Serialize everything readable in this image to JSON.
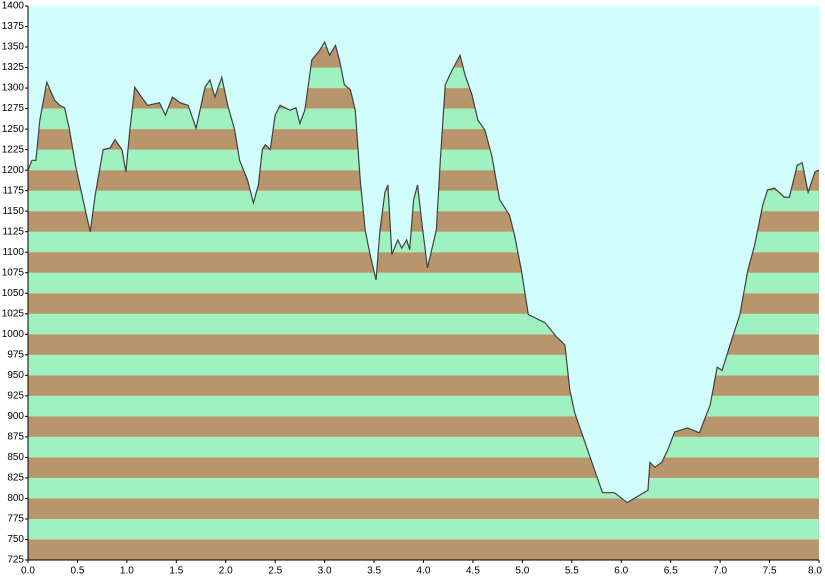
{
  "chart_data": {
    "type": "area",
    "x": [
      0,
      0.04,
      0.08,
      0.12,
      0.19,
      0.27,
      0.32,
      0.37,
      0.42,
      0.48,
      0.58,
      0.63,
      0.68,
      0.76,
      0.83,
      0.88,
      0.95,
      0.99,
      1.03,
      1.08,
      1.13,
      1.21,
      1.33,
      1.39,
      1.46,
      1.54,
      1.62,
      1.7,
      1.79,
      1.84,
      1.89,
      1.96,
      2.02,
      2.09,
      2.14,
      2.22,
      2.28,
      2.33,
      2.37,
      2.4,
      2.45,
      2.5,
      2.55,
      2.65,
      2.71,
      2.75,
      2.8,
      2.87,
      2.95,
      3.0,
      3.05,
      3.11,
      3.15,
      3.2,
      3.26,
      3.31,
      3.36,
      3.41,
      3.46,
      3.52,
      3.56,
      3.61,
      3.64,
      3.68,
      3.74,
      3.78,
      3.83,
      3.86,
      3.9,
      3.94,
      3.98,
      4.04,
      4.13,
      4.17,
      4.22,
      4.29,
      4.37,
      4.42,
      4.49,
      4.55,
      4.62,
      4.69,
      4.77,
      4.87,
      4.92,
      4.99,
      5.06,
      5.13,
      5.23,
      5.33,
      5.43,
      5.48,
      5.53,
      5.81,
      5.93,
      6.06,
      6.27,
      6.29,
      6.34,
      6.41,
      6.47,
      6.54,
      6.67,
      6.79,
      6.9,
      6.97,
      7.02,
      7.1,
      7.2,
      7.28,
      7.35,
      7.43,
      7.48,
      7.55,
      7.65,
      7.7,
      7.78,
      7.83,
      7.89,
      7.96,
      8.0
    ],
    "values": [
      1200,
      1212,
      1212,
      1261,
      1307,
      1285,
      1279,
      1276,
      1249,
      1206,
      1151,
      1125,
      1170,
      1225,
      1227,
      1237,
      1225,
      1198,
      1249,
      1301,
      1292,
      1279,
      1282,
      1267,
      1289,
      1282,
      1279,
      1251,
      1301,
      1310,
      1289,
      1313,
      1279,
      1249,
      1212,
      1188,
      1160,
      1182,
      1225,
      1231,
      1225,
      1267,
      1279,
      1273,
      1276,
      1257,
      1273,
      1334,
      1346,
      1356,
      1340,
      1352,
      1334,
      1304,
      1298,
      1273,
      1188,
      1127,
      1097,
      1066,
      1127,
      1173,
      1182,
      1097,
      1115,
      1105,
      1115,
      1103,
      1164,
      1182,
      1139,
      1081,
      1127,
      1212,
      1304,
      1322,
      1340,
      1316,
      1292,
      1261,
      1249,
      1218,
      1164,
      1145,
      1121,
      1078,
      1024,
      1020,
      1014,
      999,
      987,
      932,
      904,
      807,
      807,
      795,
      810,
      844,
      838,
      844,
      859,
      881,
      886,
      880,
      914,
      960,
      956,
      987,
      1024,
      1078,
      1109,
      1157,
      1176,
      1178,
      1167,
      1167,
      1206,
      1209,
      1173,
      1198,
      1200
    ],
    "xlim": [
      0,
      8
    ],
    "ylim": [
      725,
      1400
    ],
    "xticks": [
      {
        "value": 0,
        "label": "0.0"
      },
      0.5,
      {
        "value": 1,
        "label": "1.0"
      },
      1.5,
      {
        "value": 2,
        "label": "2.0"
      },
      2.5,
      {
        "value": 3,
        "label": "3.0"
      },
      3.5,
      {
        "value": 4,
        "label": "4.0"
      },
      4.5,
      {
        "value": 5,
        "label": "5.0"
      },
      5.5,
      {
        "value": 6,
        "label": "6.0"
      },
      6.5,
      {
        "value": 7,
        "label": "7.0"
      },
      7.5,
      {
        "value": 8,
        "label": "8.0"
      }
    ],
    "yticks": [
      725,
      750,
      775,
      800,
      825,
      850,
      875,
      900,
      925,
      950,
      975,
      1000,
      1025,
      1050,
      1075,
      1100,
      1125,
      1150,
      1175,
      1200,
      1225,
      1250,
      1275,
      1300,
      1325,
      1350,
      1375,
      1400
    ],
    "line_color": "#404040",
    "band_colors": [
      "#b8956a",
      "#9ff2bf"
    ],
    "background": "#d2fdfd"
  }
}
